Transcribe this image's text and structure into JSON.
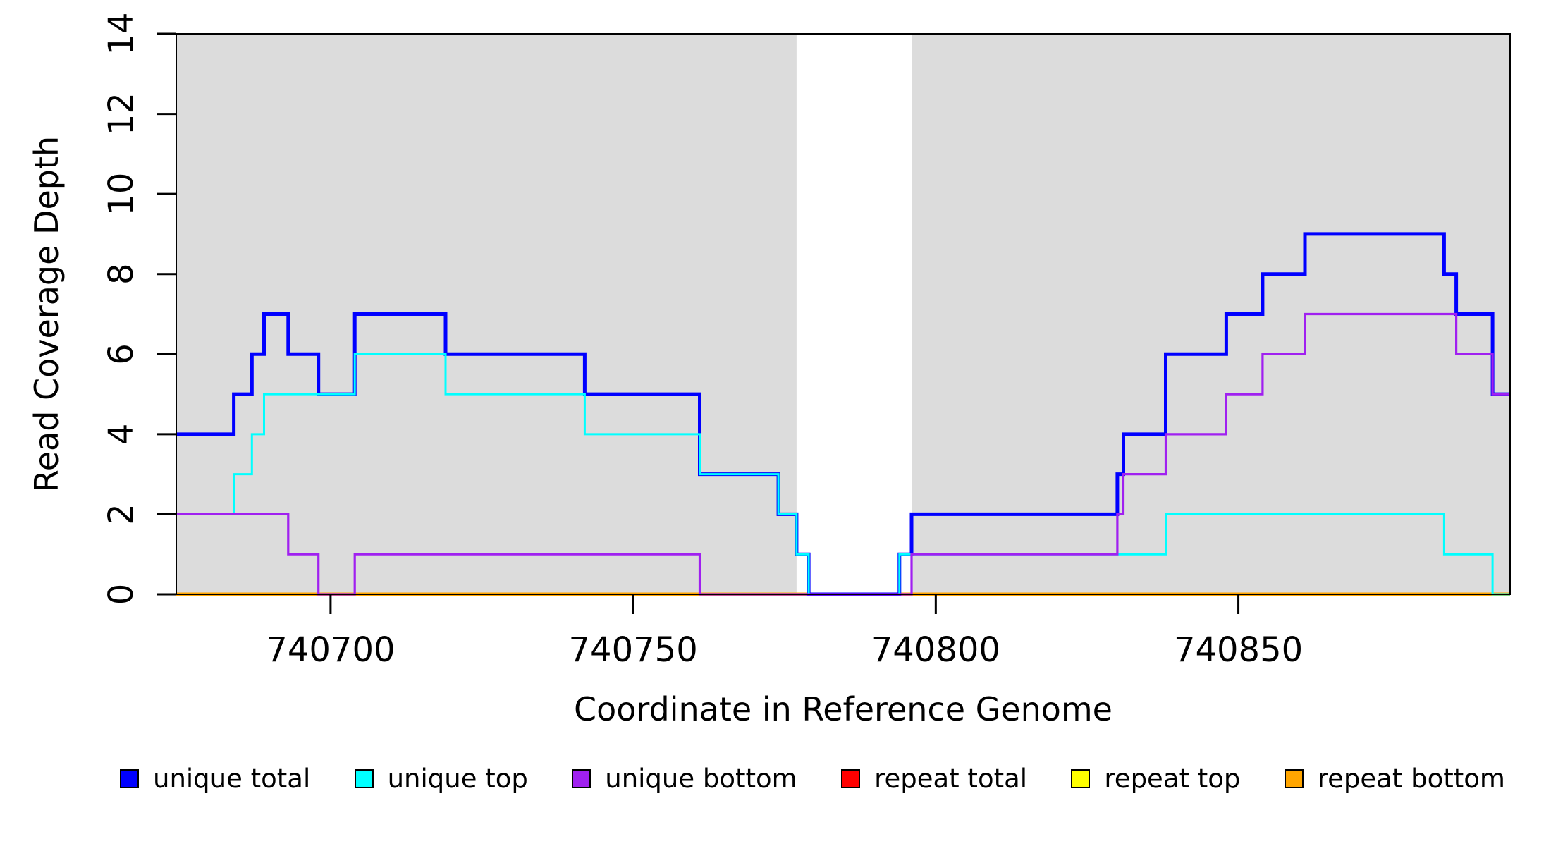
{
  "axes": {
    "x_label": "Coordinate in Reference Genome",
    "y_label": "Read Coverage Depth"
  },
  "legend": {
    "items": [
      {
        "label": "unique total",
        "color": "#0000FF"
      },
      {
        "label": "unique top",
        "color": "#00FFFF"
      },
      {
        "label": "unique bottom",
        "color": "#A020F0"
      },
      {
        "label": "repeat total",
        "color": "#FF0000"
      },
      {
        "label": "repeat top",
        "color": "#FFFF00"
      },
      {
        "label": "repeat bottom",
        "color": "#FFA500"
      }
    ]
  },
  "chart_data": {
    "type": "line",
    "step": true,
    "title": "",
    "xlabel": "Coordinate in Reference Genome",
    "ylabel": "Read Coverage Depth",
    "xlim": [
      740674.5,
      740894.9
    ],
    "ylim": [
      0,
      14
    ],
    "x_ticks": [
      740700,
      740750,
      740800,
      740850
    ],
    "y_ticks": [
      0,
      2,
      4,
      6,
      8,
      10,
      12,
      14
    ],
    "grid": false,
    "legend_position": "bottom",
    "background_color": "#FFFFFF",
    "shaded_regions": [
      {
        "x0": 740674.5,
        "x1": 740777,
        "color": "#DCDCDC"
      },
      {
        "x0": 740796,
        "x1": 740894.9,
        "color": "#DCDCDC"
      }
    ],
    "series": [
      {
        "name": "repeat total",
        "color": "#FF0000",
        "width": 3,
        "points": [
          [
            740674.5,
            0
          ]
        ]
      },
      {
        "name": "repeat top",
        "color": "#FFFF00",
        "width": 3,
        "points": [
          [
            740674.5,
            0
          ]
        ]
      },
      {
        "name": "repeat bottom",
        "color": "#FFA500",
        "width": 5,
        "points": [
          [
            740674.5,
            0
          ]
        ]
      },
      {
        "name": "unique total",
        "color": "#0000FF",
        "width": 5,
        "points": [
          [
            740674.5,
            4
          ],
          [
            740684,
            5
          ],
          [
            740687,
            6
          ],
          [
            740689,
            7
          ],
          [
            740693,
            6
          ],
          [
            740698,
            5
          ],
          [
            740704,
            7
          ],
          [
            740719,
            6
          ],
          [
            740742,
            5
          ],
          [
            740761,
            3
          ],
          [
            740774,
            2
          ],
          [
            740777,
            1
          ],
          [
            740779,
            0
          ],
          [
            740794,
            1
          ],
          [
            740796,
            2
          ],
          [
            740830,
            3
          ],
          [
            740831,
            4
          ],
          [
            740838,
            6
          ],
          [
            740848,
            7
          ],
          [
            740854,
            8
          ],
          [
            740861,
            9
          ],
          [
            740884,
            8
          ],
          [
            740886,
            7
          ],
          [
            740892,
            5
          ]
        ]
      },
      {
        "name": "unique top",
        "color": "#00FFFF",
        "width": 3,
        "points": [
          [
            740674.5,
            2
          ],
          [
            740684,
            3
          ],
          [
            740687,
            4
          ],
          [
            740689,
            5
          ],
          [
            740704,
            6
          ],
          [
            740719,
            5
          ],
          [
            740742,
            4
          ],
          [
            740761,
            3
          ],
          [
            740774,
            2
          ],
          [
            740777,
            1
          ],
          [
            740779,
            0
          ],
          [
            740794,
            1
          ],
          [
            740838,
            2
          ],
          [
            740884,
            1
          ],
          [
            740892,
            0
          ]
        ]
      },
      {
        "name": "unique bottom",
        "color": "#A020F0",
        "width": 3.2,
        "points": [
          [
            740674.5,
            2
          ],
          [
            740693,
            1
          ],
          [
            740698,
            0
          ],
          [
            740704,
            1
          ],
          [
            740761,
            0
          ],
          [
            740796,
            1
          ],
          [
            740830,
            2
          ],
          [
            740831,
            3
          ],
          [
            740838,
            4
          ],
          [
            740848,
            5
          ],
          [
            740854,
            6
          ],
          [
            740861,
            7
          ],
          [
            740886,
            6
          ],
          [
            740892,
            5
          ]
        ]
      }
    ]
  }
}
